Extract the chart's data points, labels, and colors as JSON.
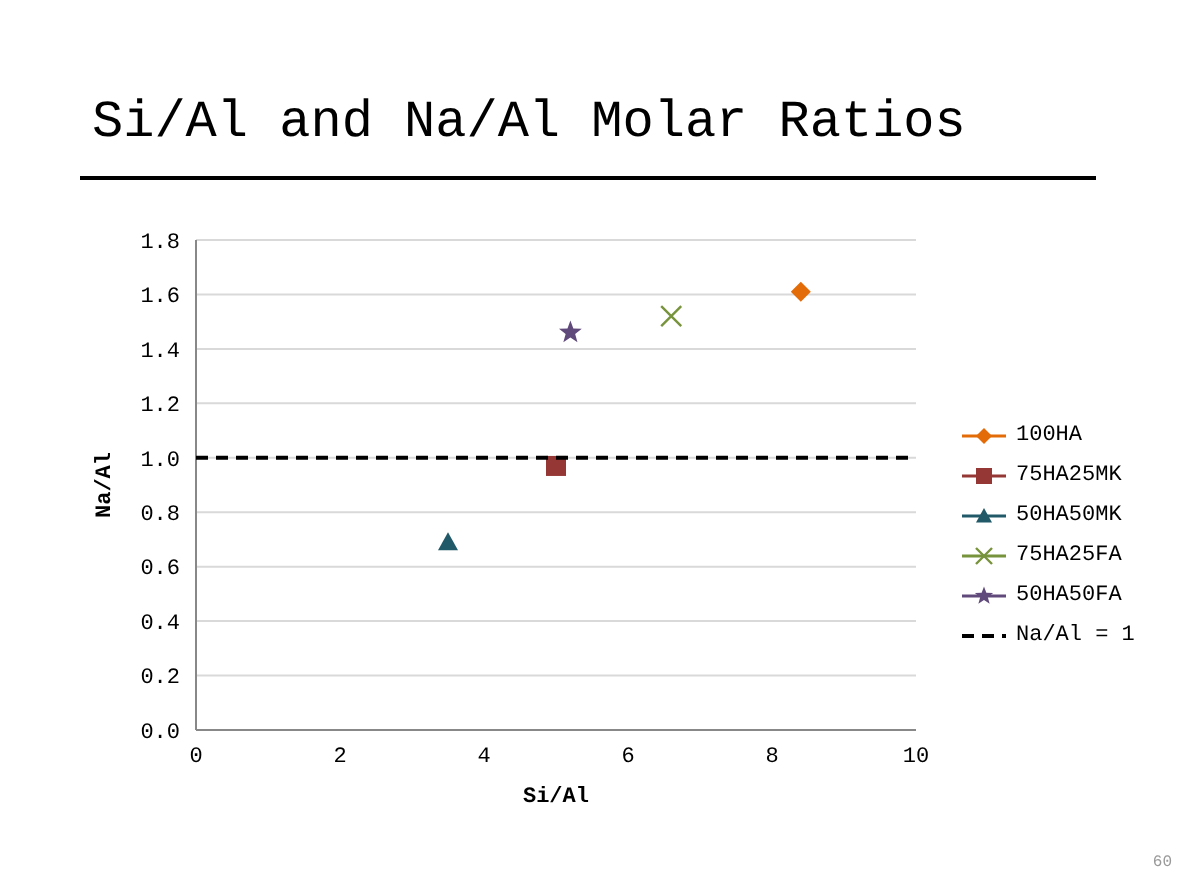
{
  "chart_data": {
    "type": "scatter",
    "title": "Si/Al and Na/Al Molar Ratios",
    "xlabel": "Si/Al",
    "ylabel": "Na/Al",
    "series": [
      {
        "name": "100HA",
        "color": "#e36c09",
        "marker": "diamond",
        "x": [
          8.4
        ],
        "values": [
          1.61
        ]
      },
      {
        "name": "75HA25MK",
        "color": "#953735",
        "marker": "square",
        "x": [
          5.0
        ],
        "values": [
          0.97
        ]
      },
      {
        "name": "50HA50MK",
        "color": "#215968",
        "marker": "triangle",
        "x": [
          3.5
        ],
        "values": [
          0.69
        ]
      },
      {
        "name": "75HA25FA",
        "color": "#77933c",
        "marker": "cross",
        "x": [
          6.6
        ],
        "values": [
          1.52
        ]
      },
      {
        "name": "50HA50FA",
        "color": "#604a7b",
        "marker": "star",
        "x": [
          5.2
        ],
        "values": [
          1.46
        ]
      },
      {
        "name": "Na/Al = 1",
        "type": "line",
        "color": "#000000",
        "marker": "none",
        "line_style": "dashed",
        "x": [
          0,
          10
        ],
        "values": [
          1,
          1
        ]
      }
    ],
    "xlim": [
      0,
      10
    ],
    "xticks": [
      0,
      2,
      4,
      6,
      8,
      10
    ],
    "ylim": [
      0,
      1.8
    ],
    "yticks": [
      {
        "value": 0,
        "label": "0.0"
      },
      {
        "value": 0.2,
        "label": "0.2"
      },
      {
        "value": 0.4,
        "label": "0.4"
      },
      {
        "value": 0.6,
        "label": "0.6"
      },
      {
        "value": 0.8,
        "label": "0.8"
      },
      {
        "value": 1,
        "label": "1.0"
      },
      {
        "value": 1.2,
        "label": "1.2"
      },
      {
        "value": 1.4,
        "label": "1.4"
      },
      {
        "value": 1.6,
        "label": "1.6"
      },
      {
        "value": 1.8,
        "label": "1.8"
      }
    ],
    "grid": "y",
    "legend": "right",
    "annotations": [
      "60"
    ]
  }
}
